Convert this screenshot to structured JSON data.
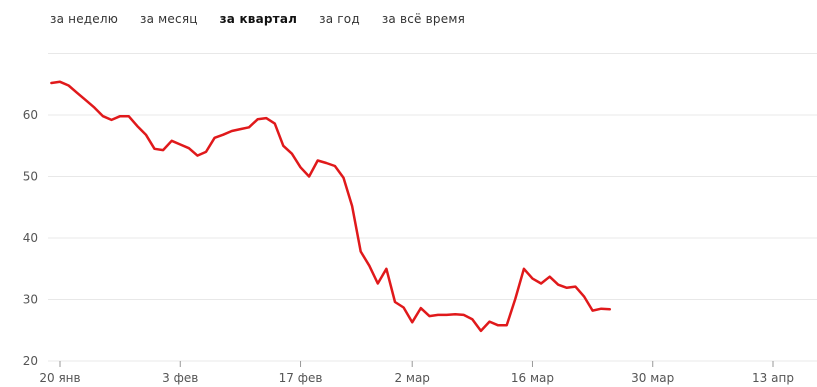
{
  "period_tabs": [
    {
      "label": "за неделю",
      "active": false
    },
    {
      "label": "за месяц",
      "active": false
    },
    {
      "label": "за квартал",
      "active": true
    },
    {
      "label": "за год",
      "active": false
    },
    {
      "label": "за всё время",
      "active": false
    }
  ],
  "colors": {
    "line": "#e0191b",
    "grid": "#e8e8e8",
    "text": "#555555"
  },
  "chart_data": {
    "type": "line",
    "title": "",
    "xlabel": "",
    "ylabel": "",
    "ylim": [
      20,
      65
    ],
    "grid": true,
    "y_ticks": [
      20,
      30,
      40,
      50,
      60
    ],
    "x_ticks": [
      {
        "label": "20 янв",
        "day": 0
      },
      {
        "label": "3 фев",
        "day": 14
      },
      {
        "label": "17 фев",
        "day": 28
      },
      {
        "label": "2 мар",
        "day": 41
      },
      {
        "label": "16 мар",
        "day": 55
      },
      {
        "label": "30 мар",
        "day": 69
      },
      {
        "label": "13 апр",
        "day": 83
      }
    ],
    "x_range_days": [
      -1,
      88
    ],
    "series": [
      {
        "values": [
          [
            -1,
            65.2
          ],
          [
            0,
            65.4
          ],
          [
            1,
            64.8
          ],
          [
            2,
            63.6
          ],
          [
            3,
            62.4
          ],
          [
            4,
            61.2
          ],
          [
            5,
            59.8
          ],
          [
            6,
            59.2
          ],
          [
            7,
            59.8
          ],
          [
            8,
            59.8
          ],
          [
            9,
            58.2
          ],
          [
            10,
            56.8
          ],
          [
            11,
            54.5
          ],
          [
            12,
            54.3
          ],
          [
            13,
            55.8
          ],
          [
            14,
            55.2
          ],
          [
            15,
            54.6
          ],
          [
            16,
            53.4
          ],
          [
            17,
            54.0
          ],
          [
            18,
            56.3
          ],
          [
            19,
            56.8
          ],
          [
            20,
            57.4
          ],
          [
            21,
            57.7
          ],
          [
            22,
            58.0
          ],
          [
            23,
            59.3
          ],
          [
            24,
            59.5
          ],
          [
            25,
            58.6
          ],
          [
            26,
            55.0
          ],
          [
            27,
            53.7
          ],
          [
            28,
            51.5
          ],
          [
            29,
            50.0
          ],
          [
            30,
            52.6
          ],
          [
            31,
            52.2
          ],
          [
            32,
            51.7
          ],
          [
            33,
            49.8
          ],
          [
            34,
            45.2
          ],
          [
            35,
            37.8
          ],
          [
            36,
            35.5
          ],
          [
            37,
            32.6
          ],
          [
            38,
            35.0
          ],
          [
            39,
            29.6
          ],
          [
            40,
            28.7
          ],
          [
            41,
            26.3
          ],
          [
            42,
            28.6
          ],
          [
            43,
            27.3
          ],
          [
            44,
            27.5
          ],
          [
            45,
            27.5
          ],
          [
            46,
            27.6
          ],
          [
            47,
            27.5
          ],
          [
            48,
            26.8
          ],
          [
            49,
            24.9
          ],
          [
            50,
            26.4
          ],
          [
            51,
            25.8
          ],
          [
            52,
            25.8
          ],
          [
            53,
            30.1
          ],
          [
            54,
            35.0
          ],
          [
            55,
            33.4
          ],
          [
            56,
            32.6
          ],
          [
            57,
            33.7
          ],
          [
            58,
            32.4
          ],
          [
            59,
            31.9
          ],
          [
            60,
            32.1
          ],
          [
            61,
            30.5
          ],
          [
            62,
            28.2
          ],
          [
            63,
            28.5
          ],
          [
            64,
            28.4
          ]
        ]
      }
    ]
  }
}
